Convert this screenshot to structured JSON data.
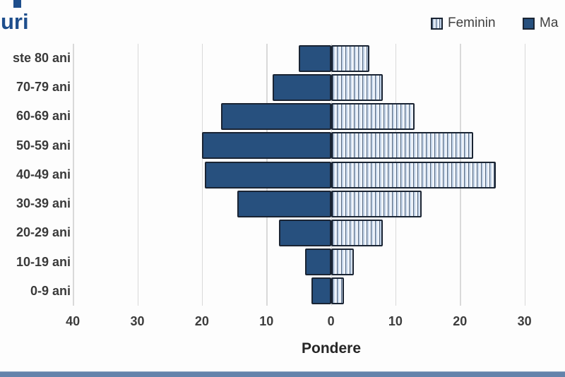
{
  "title": "uri",
  "legend": {
    "items": [
      {
        "label": "Feminin",
        "series": "feminin"
      },
      {
        "label": "Ma",
        "series": "masculin"
      }
    ]
  },
  "chart_data": {
    "type": "bar",
    "subtype": "population_pyramid",
    "orientation": "horizontal",
    "title_fragment_visible": "uri",
    "xlabel": "Pondere",
    "categories": [
      "ste 80 ani",
      "70-79 ani",
      "60-69 ani",
      "50-59 ani",
      "40-49 ani",
      "30-39 ani",
      "20-29 ani",
      "10-19 ani",
      "0-9 ani"
    ],
    "series": [
      {
        "name": "Feminin",
        "side": "right",
        "values": [
          6,
          8,
          13,
          22,
          25.5,
          14,
          8,
          3.5,
          2
        ]
      },
      {
        "name": "Ma",
        "side": "left",
        "values": [
          5,
          9,
          17,
          20,
          19.5,
          14.5,
          8,
          4,
          3
        ]
      }
    ],
    "x_axis_display": [
      "40",
      "30",
      "20",
      "10",
      "0",
      "10",
      "20",
      "30"
    ],
    "x_tick_spacing_units": 10,
    "xlim_left": 45,
    "xlim_right": 36,
    "grid": true,
    "legend_position": "top-right"
  },
  "colors": {
    "masculin_fill": "#27507e",
    "feminin_fill_base": "#c2d3e8",
    "bar_border": "#1a2433",
    "title": "#1e4e8c",
    "gridline": "#d9d9d9",
    "axis_text": "#3d3d3d",
    "bottom_strip": "#6483ab"
  }
}
